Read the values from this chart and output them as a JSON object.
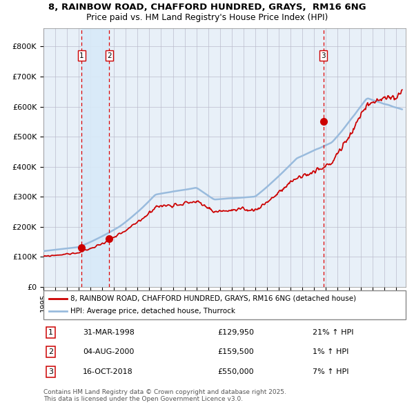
{
  "title_line1": "8, RAINBOW ROAD, CHAFFORD HUNDRED, GRAYS,  RM16 6NG",
  "title_line2": "Price paid vs. HM Land Registry's House Price Index (HPI)",
  "legend_line1": "8, RAINBOW ROAD, CHAFFORD HUNDRED, GRAYS, RM16 6NG (detached house)",
  "legend_line2": "HPI: Average price, detached house, Thurrock",
  "footer_line1": "Contains HM Land Registry data © Crown copyright and database right 2025.",
  "footer_line2": "This data is licensed under the Open Government Licence v3.0.",
  "transactions": [
    {
      "num": 1,
      "date": "31-MAR-1998",
      "price": 129950,
      "pct": "21%",
      "dir": "↑"
    },
    {
      "num": 2,
      "date": "04-AUG-2000",
      "price": 159500,
      "pct": "1%",
      "dir": "↑"
    },
    {
      "num": 3,
      "date": "16-OCT-2018",
      "price": 550000,
      "pct": "7%",
      "dir": "↑"
    }
  ],
  "transaction_years": [
    1998.25,
    2000.59,
    2018.79
  ],
  "transaction_prices": [
    129950,
    159500,
    550000
  ],
  "sale_color": "#cc0000",
  "hpi_color": "#99bbdd",
  "background_color": "#e8f0f8",
  "shade_color": "#d8eaf8",
  "shade_between": [
    [
      1998.25,
      2000.59
    ]
  ],
  "ylim": [
    0,
    860000
  ],
  "xlim_start": 1995.0,
  "xlim_end": 2025.8,
  "yticks": [
    0,
    100000,
    200000,
    300000,
    400000,
    500000,
    600000,
    700000,
    800000
  ],
  "ytick_labels": [
    "£0",
    "£100K",
    "£200K",
    "£300K",
    "£400K",
    "£500K",
    "£600K",
    "£700K",
    "£800K"
  ],
  "grid_color": "#bbbbcc",
  "dashed_line_color": "#dd0000",
  "marker_color": "#cc0000"
}
